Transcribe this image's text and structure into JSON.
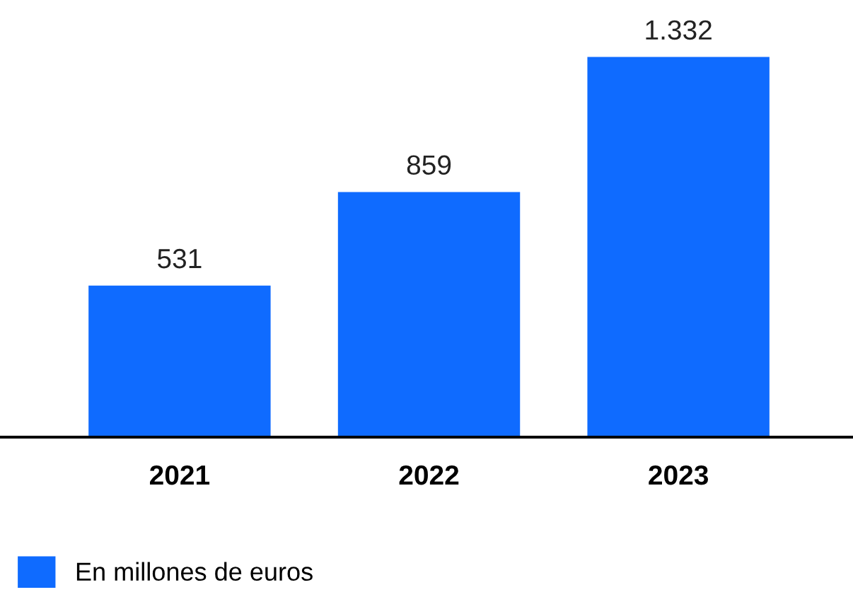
{
  "chart_data": {
    "type": "bar",
    "categories": [
      "2021",
      "2022",
      "2023"
    ],
    "series": [
      {
        "name": "En millones de euros",
        "color": "#0f6bff",
        "values": [
          531,
          859,
          1332
        ],
        "value_labels": [
          "531",
          "859",
          "1.332"
        ]
      }
    ],
    "legend": "bottom left",
    "grid": false
  }
}
